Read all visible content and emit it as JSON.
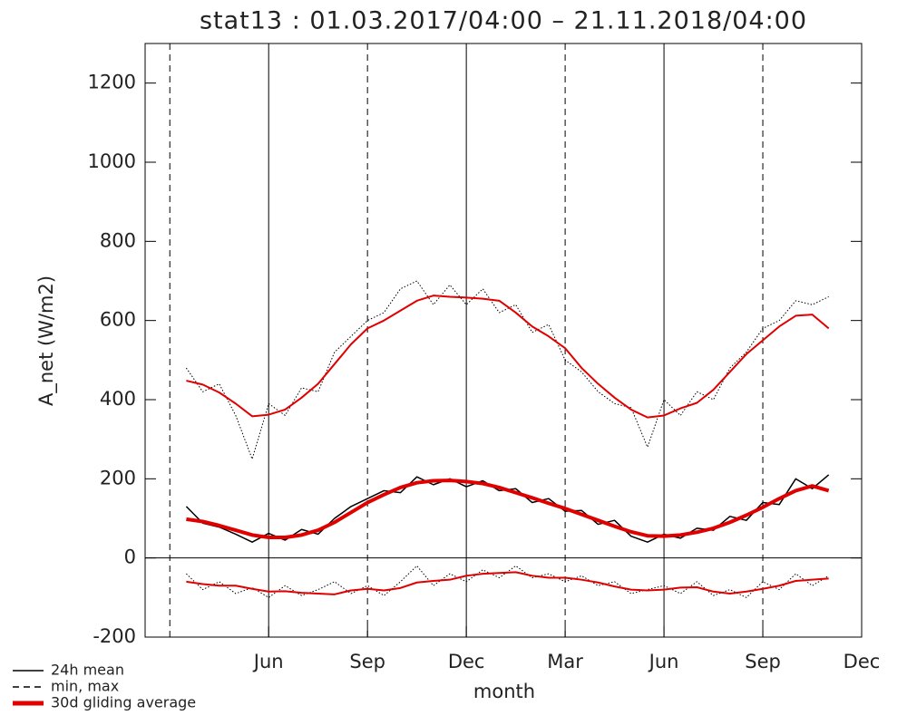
{
  "chart_data": {
    "type": "line",
    "title": "stat13 : 01.03.2017/04:00 – 21.11.2018/04:00",
    "y_label": "A_net (W/m2)",
    "x_label": "month",
    "xlim": [
      1.25,
      23
    ],
    "ylim": [
      -200,
      1300
    ],
    "xticks": [
      {
        "value": 5,
        "label": "Jun"
      },
      {
        "value": 8,
        "label": "Sep"
      },
      {
        "value": 11,
        "label": "Dec"
      },
      {
        "value": 14,
        "label": "Mar"
      },
      {
        "value": 17,
        "label": "Jun"
      },
      {
        "value": 20,
        "label": "Sep"
      },
      {
        "value": 23,
        "label": "Dec"
      }
    ],
    "yticks": [
      -200,
      0,
      200,
      400,
      600,
      800,
      1000,
      1200
    ],
    "reference_lines": [
      {
        "x": 2,
        "style": "dashed"
      },
      {
        "x": 5,
        "style": "solid"
      },
      {
        "x": 8,
        "style": "dashed"
      },
      {
        "x": 11,
        "style": "solid"
      },
      {
        "x": 14,
        "style": "dashed"
      },
      {
        "x": 17,
        "style": "solid"
      },
      {
        "x": 20,
        "style": "dashed"
      }
    ],
    "zero_line": 0,
    "x": [
      2.5,
      3,
      3.5,
      4,
      4.5,
      5,
      5.5,
      6,
      6.5,
      7,
      7.5,
      8,
      8.5,
      9,
      9.5,
      10,
      10.5,
      11,
      11.5,
      12,
      12.5,
      13,
      13.5,
      14,
      14.5,
      15,
      15.5,
      16,
      16.5,
      17,
      17.5,
      18,
      18.5,
      19,
      19.5,
      20,
      20.5,
      21,
      21.5,
      22
    ],
    "series": [
      {
        "color": "#000000",
        "style": "solid",
        "width": 1.5,
        "values": [
          130,
          88,
          78,
          60,
          40,
          62,
          45,
          72,
          60,
          100,
          130,
          150,
          170,
          165,
          205,
          185,
          200,
          180,
          195,
          170,
          175,
          140,
          150,
          118,
          120,
          85,
          95,
          55,
          40,
          60,
          50,
          75,
          70,
          105,
          95,
          140,
          135,
          200,
          175,
          210
        ]
      },
      {
        "color": "#000000",
        "style": "dotted",
        "width": 1,
        "values": [
          480,
          420,
          440,
          360,
          250,
          390,
          360,
          430,
          420,
          520,
          560,
          600,
          620,
          680,
          700,
          640,
          690,
          640,
          680,
          620,
          640,
          570,
          590,
          500,
          470,
          420,
          390,
          380,
          280,
          400,
          360,
          420,
          400,
          480,
          520,
          580,
          600,
          650,
          640,
          660
        ]
      },
      {
        "color": "#000000",
        "style": "dotted",
        "width": 1,
        "values": [
          -40,
          -80,
          -60,
          -90,
          -75,
          -100,
          -70,
          -95,
          -80,
          -60,
          -90,
          -70,
          -95,
          -60,
          -20,
          -70,
          -40,
          -60,
          -30,
          -50,
          -20,
          -50,
          -40,
          -60,
          -45,
          -70,
          -60,
          -90,
          -80,
          -70,
          -90,
          -60,
          -95,
          -80,
          -100,
          -60,
          -80,
          -40,
          -70,
          -45
        ]
      },
      {
        "color": "#e00000",
        "style": "solid",
        "width": 4,
        "values": [
          98,
          92,
          82,
          70,
          58,
          52,
          52,
          58,
          70,
          90,
          115,
          140,
          160,
          178,
          190,
          195,
          196,
          193,
          188,
          178,
          165,
          152,
          138,
          125,
          110,
          95,
          80,
          66,
          56,
          55,
          58,
          65,
          75,
          90,
          108,
          128,
          150,
          170,
          182,
          170
        ]
      },
      {
        "color": "#e00000",
        "style": "solid",
        "width": 2,
        "values": [
          448,
          438,
          418,
          390,
          358,
          362,
          375,
          405,
          440,
          490,
          540,
          580,
          600,
          625,
          650,
          663,
          660,
          658,
          655,
          650,
          620,
          585,
          560,
          530,
          480,
          440,
          405,
          375,
          355,
          360,
          378,
          392,
          425,
          470,
          515,
          550,
          585,
          612,
          615,
          580
        ]
      },
      {
        "color": "#e00000",
        "style": "solid",
        "width": 2,
        "values": [
          -60,
          -66,
          -70,
          -70,
          -78,
          -85,
          -84,
          -88,
          -90,
          -92,
          -82,
          -78,
          -82,
          -76,
          -62,
          -58,
          -55,
          -45,
          -40,
          -38,
          -36,
          -45,
          -50,
          -50,
          -55,
          -62,
          -72,
          -80,
          -82,
          -80,
          -75,
          -74,
          -85,
          -90,
          -85,
          -78,
          -70,
          -58,
          -55,
          -52
        ]
      }
    ],
    "legend": [
      {
        "label": "24h mean",
        "color": "#000000",
        "style": "solid",
        "width": 1.5
      },
      {
        "label": "min, max",
        "color": "#000000",
        "style": "dashed",
        "width": 1.5
      },
      {
        "label": "30d gliding average",
        "color": "#e00000",
        "style": "solid",
        "width": 5
      }
    ]
  }
}
